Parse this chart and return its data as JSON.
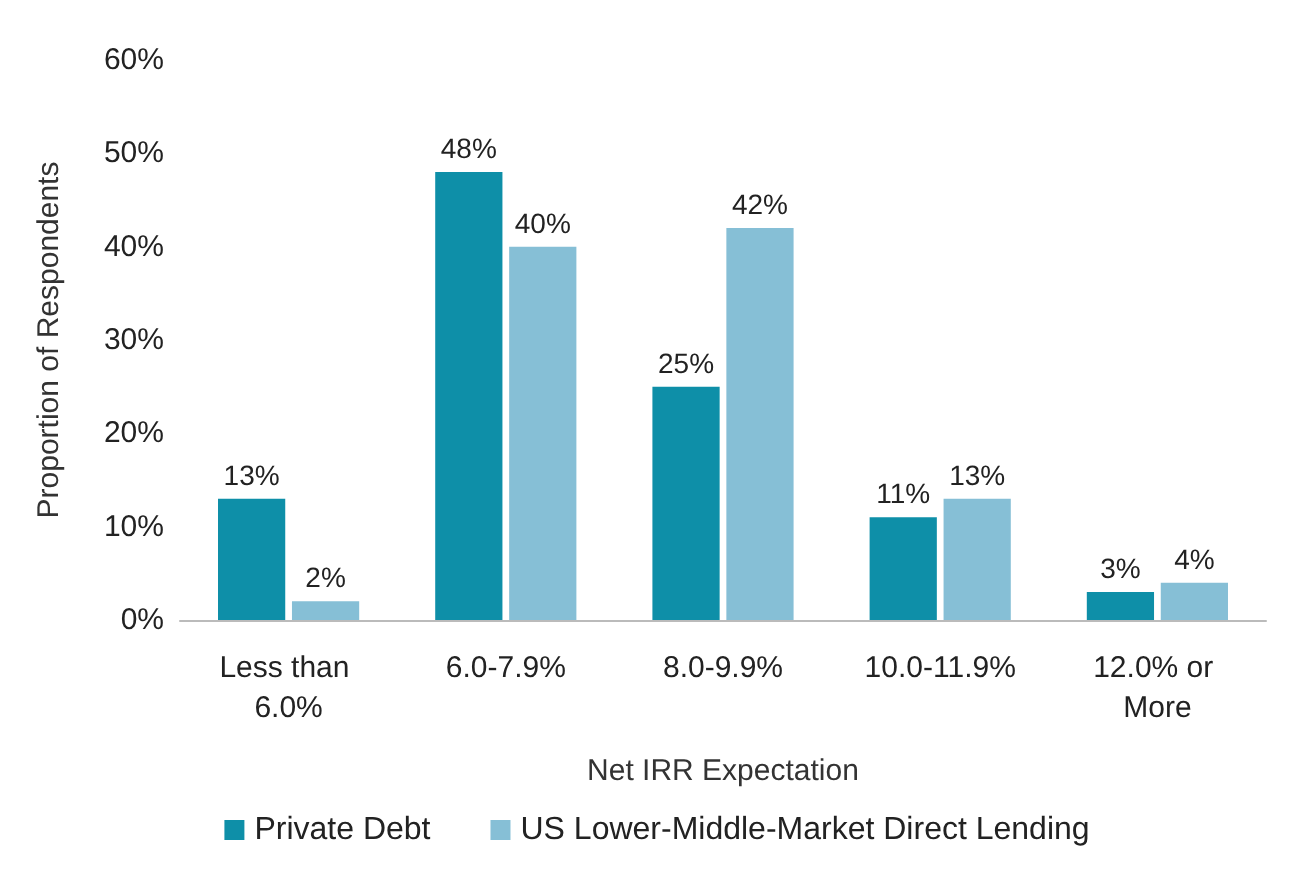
{
  "chart_data": {
    "type": "bar",
    "xlabel": "Net IRR Expectation",
    "ylabel": "Proportion of Respondents",
    "categories": [
      "Less than 6.0%",
      "6.0-7.9%",
      "8.0-9.9%",
      "10.0-11.9%",
      "12.0% or More"
    ],
    "series": [
      {
        "name": "Private Debt",
        "color": "#0e8fa8",
        "values": [
          13,
          48,
          25,
          11,
          3
        ],
        "value_labels": [
          "13%",
          "48%",
          "25%",
          "11%",
          "3%"
        ]
      },
      {
        "name": "US Lower-Middle-Market Direct Lending",
        "color": "#86bfd6",
        "values": [
          2,
          40,
          42,
          13,
          4
        ],
        "value_labels": [
          "2%",
          "40%",
          "42%",
          "13%",
          "4%"
        ]
      }
    ],
    "ylim": [
      0,
      60
    ],
    "yticks": [
      {
        "value": 0,
        "label": "0%"
      },
      {
        "value": 10,
        "label": "10%"
      },
      {
        "value": 20,
        "label": "20%"
      },
      {
        "value": 30,
        "label": "30%"
      },
      {
        "value": 40,
        "label": "40%"
      },
      {
        "value": 50,
        "label": "50%"
      },
      {
        "value": 60,
        "label": "60%"
      }
    ],
    "grid": false,
    "legend": "bottom"
  }
}
